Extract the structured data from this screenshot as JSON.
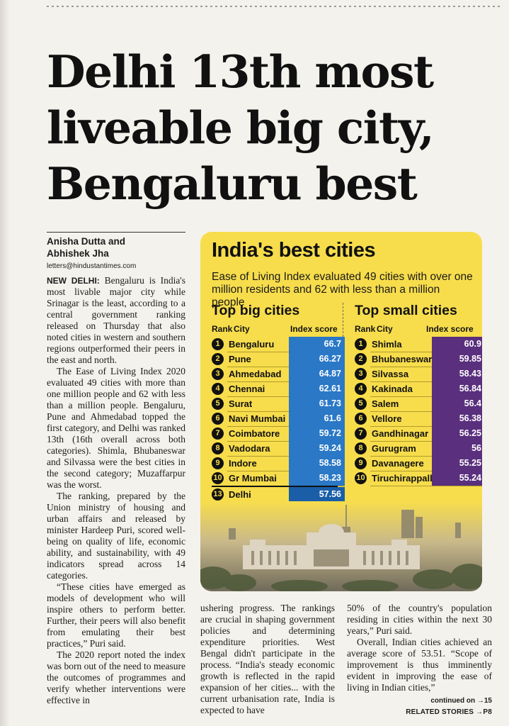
{
  "headline": "Delhi 13th most liveable big city, Bengaluru best",
  "byline": {
    "authors_line1": "Anisha Dutta and",
    "authors_line2": "Abhishek Jha",
    "email": "letters@hindustantimes.com"
  },
  "article": {
    "dateline": "NEW DELHI:",
    "p1": "Bengaluru is India's most livable major city while Srinagar is the least, according to a central government ranking released on Thursday that also noted cities in western and southern regions outperformed their peers in the east and north.",
    "p2": "The Ease of Living Index 2020 evaluated 49 cities with more than one million people and 62 with less than a million people. Bengaluru, Pune and Ahmedabad topped the first category, and Delhi was ranked 13th (16th overall across both categories). Shimla, Bhubaneswar and Silvassa were the best cities in the second category; Muzaffarpur was the worst.",
    "p3": "The ranking, prepared by the Union ministry of housing and urban affairs and released by minister Hardeep Puri, scored well-being on quality of life, economic ability, and sustainability, with 49 indicators spread across 14 categories.",
    "p4": "“These cities have emerged as models of development who will inspire others to perform better. Further, their peers will also benefit from emulating their best practices,” Puri said.",
    "p5": "The 2020 report noted the index was born out of the need to measure the outcomes of programmes and verify whether interventions were effective in",
    "p6": "ushering progress. The rankings are crucial in shaping government policies and determining expenditure priorities. West Bengal didn't participate in the process. “India's steady economic growth is reflected in the rapid expansion of her cities... with the current urbanisation rate, India is expected to have",
    "p7": "50% of the country's population residing in cities within the next 30 years,” Puri said.",
    "p8": "Overall, Indian cities achieved an average score of 53.51. “Scope of improvement is thus imminently evident in improving the ease of living in Indian cities,”",
    "continued": "continued on →15",
    "related": "RELATED STORIES →P8"
  },
  "infographic": {
    "title": "India's best cities",
    "subtitle": "Ease of Living Index evaluated 49 cities with over one million residents and 62 with less than a million people",
    "big": {
      "title": "Top big cities",
      "h_rank": "Rank",
      "h_city": "City",
      "h_score": "Index score",
      "rows": [
        {
          "rank": "1",
          "city": "Bengaluru",
          "score": "66.7"
        },
        {
          "rank": "2",
          "city": "Pune",
          "score": "66.27"
        },
        {
          "rank": "3",
          "city": "Ahmedabad",
          "score": "64.87"
        },
        {
          "rank": "4",
          "city": "Chennai",
          "score": "62.61"
        },
        {
          "rank": "5",
          "city": "Surat",
          "score": "61.73"
        },
        {
          "rank": "6",
          "city": "Navi Mumbai",
          "score": "61.6"
        },
        {
          "rank": "7",
          "city": "Coimbatore",
          "score": "59.72"
        },
        {
          "rank": "8",
          "city": "Vadodara",
          "score": "59.24"
        },
        {
          "rank": "9",
          "city": "Indore",
          "score": "58.58"
        },
        {
          "rank": "10",
          "city": "Gr Mumbai",
          "score": "58.23"
        }
      ],
      "delhi": {
        "rank": "13",
        "city": "Delhi",
        "score": "57.56"
      }
    },
    "small": {
      "title": "Top small cities",
      "h_rank": "Rank",
      "h_city": "City",
      "h_score": "Index score",
      "rows": [
        {
          "rank": "1",
          "city": "Shimla",
          "score": "60.9"
        },
        {
          "rank": "2",
          "city": "Bhubaneswar",
          "score": "59.85"
        },
        {
          "rank": "3",
          "city": "Silvassa",
          "score": "58.43"
        },
        {
          "rank": "4",
          "city": "Kakinada",
          "score": "56.84"
        },
        {
          "rank": "5",
          "city": "Salem",
          "score": "56.4"
        },
        {
          "rank": "6",
          "city": "Vellore",
          "score": "56.38"
        },
        {
          "rank": "7",
          "city": "Gandhinagar",
          "score": "56.25"
        },
        {
          "rank": "8",
          "city": "Gurugram",
          "score": "56"
        },
        {
          "rank": "9",
          "city": "Davanagere",
          "score": "55.25"
        },
        {
          "rank": "10",
          "city": "Tiruchirappalli",
          "score": "55.24"
        }
      ]
    },
    "colors": {
      "background": "#f7dd4c",
      "big_bar": "#2a78c6",
      "small_bar": "#5a2f7d"
    }
  }
}
